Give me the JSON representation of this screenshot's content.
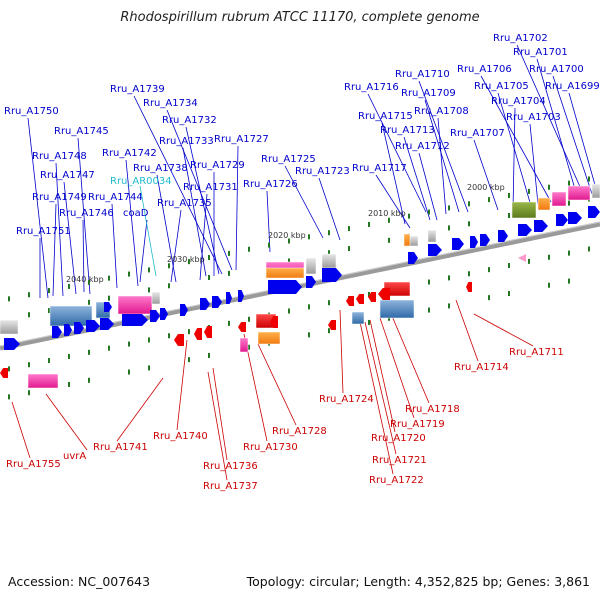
{
  "title": "Rhodospirillum rubrum ATCC 11170, complete genome",
  "footer": {
    "accession": "Accession: NC_007643",
    "topology": "Topology: circular; Length: 4,352,825 bp; Genes: 3,861"
  },
  "colors": {
    "forward_label": "#0000cc",
    "reverse_label": "#cc0000",
    "rna_label": "#22bbcc",
    "axis": "#888888",
    "forward_gene": "#0000ee",
    "reverse_gene": "#ee0000",
    "tick": "#227722"
  },
  "ruler": [
    {
      "label": "2000 kbp"
    },
    {
      "label": "2010 kbp"
    },
    {
      "label": "2020 kbp"
    },
    {
      "label": "2030 kbp"
    },
    {
      "label": "2040 kbp"
    }
  ],
  "labels_forward": [
    "Rru_A1702",
    "Rru_A1701",
    "Rru_A1706",
    "Rru_A1700",
    "Rru_A1705",
    "Rru_A1710",
    "Rru_A1699",
    "Rru_A1716",
    "Rru_A1709",
    "Rru_A1704",
    "Rru_A1739",
    "Rru_A1734",
    "Rru_A1708",
    "Rru_A1715",
    "Rru_A1703",
    "Rru_A1750",
    "Rru_A1732",
    "Rru_A1713",
    "Rru_A1745",
    "Rru_A1707",
    "Rru_A1733",
    "Rru_A1727",
    "Rru_A1712",
    "Rru_A1742",
    "Rru_A1748",
    "Rru_A1725",
    "Rru_A1738",
    "Rru_A1729",
    "Rru_A1747",
    "Rru_A1717",
    "Rru_A1723",
    "Rru_A1731",
    "Rru_A1726",
    "Rru_A1749",
    "Rru_A1744",
    "Rru_A1735",
    "Rru_A1746",
    "coaD",
    "Rru_A1751"
  ],
  "labels_rna": [
    "Rru_AR0034"
  ],
  "labels_reverse": [
    "Rru_A1711",
    "Rru_A1714",
    "Rru_A1724",
    "Rru_A1718",
    "Rru_A1719",
    "Rru_A1740",
    "Rru_A1728",
    "Rru_A1720",
    "Rru_A1741",
    "Rru_A1730",
    "uvrA",
    "Rru_A1721",
    "Rru_A1755",
    "Rru_A1736",
    "Rru_A1722",
    "Rru_A1737"
  ]
}
